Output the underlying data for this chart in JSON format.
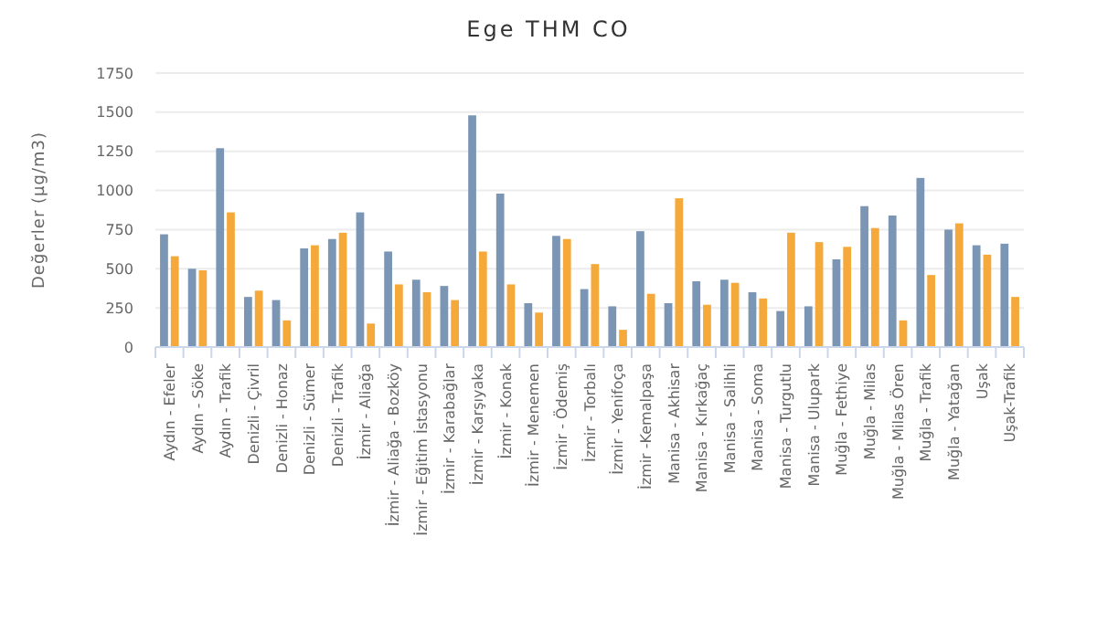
{
  "chart_data": {
    "type": "bar",
    "title": "Ege THM CO",
    "ylabel": "Değerler (µg/m3)",
    "categories": [
      "Aydın - Efeler",
      "Aydın - Söke",
      "Aydın - Trafik",
      "Denizli - Çivril",
      "Denizli - Honaz",
      "Denizli - Sümer",
      "Denizli - Trafik",
      "İzmir - Aliağa",
      "İzmir - Aliağa - Bozköy",
      "İzmir - Eğitim İstasyonu",
      "İzmir - Karabağlar",
      "İzmir - Karşıyaka",
      "İzmir - Konak",
      "İzmir - Menemen",
      "İzmir - Ödemiş",
      "İzmir - Torbalı",
      "İzmir - Yenifoça",
      "İzmir -Kemalpaşa",
      "Manisa - Akhisar",
      "Manisa - Kırkağaç",
      "Manisa - Salihli",
      "Manisa - Soma",
      "Manisa - Turgutlu",
      "Manisa - Ulupark",
      "Muğla - Fethiye",
      "Muğla - Milas",
      "Muğla - Milas Ören",
      "Muğla - Trafik",
      "Muğla - Yatağan",
      "Uşak",
      "Uşak-Trafik"
    ],
    "series": [
      {
        "color": "#7b96b5",
        "values": [
          720,
          500,
          1270,
          320,
          300,
          630,
          690,
          860,
          610,
          430,
          390,
          1480,
          980,
          280,
          710,
          370,
          260,
          740,
          280,
          420,
          430,
          350,
          230,
          260,
          560,
          900,
          840,
          1080,
          750,
          650,
          660
        ]
      },
      {
        "color": "#f5a93a",
        "values": [
          580,
          490,
          860,
          360,
          170,
          650,
          730,
          150,
          400,
          350,
          300,
          610,
          400,
          220,
          690,
          530,
          110,
          340,
          950,
          270,
          410,
          310,
          730,
          670,
          640,
          760,
          170,
          460,
          790,
          590,
          320
        ]
      }
    ],
    "ylim": [
      0,
      1750
    ],
    "yticks": [
      0,
      250,
      500,
      750,
      1000,
      1250,
      1500,
      1750
    ],
    "grid": "y"
  }
}
